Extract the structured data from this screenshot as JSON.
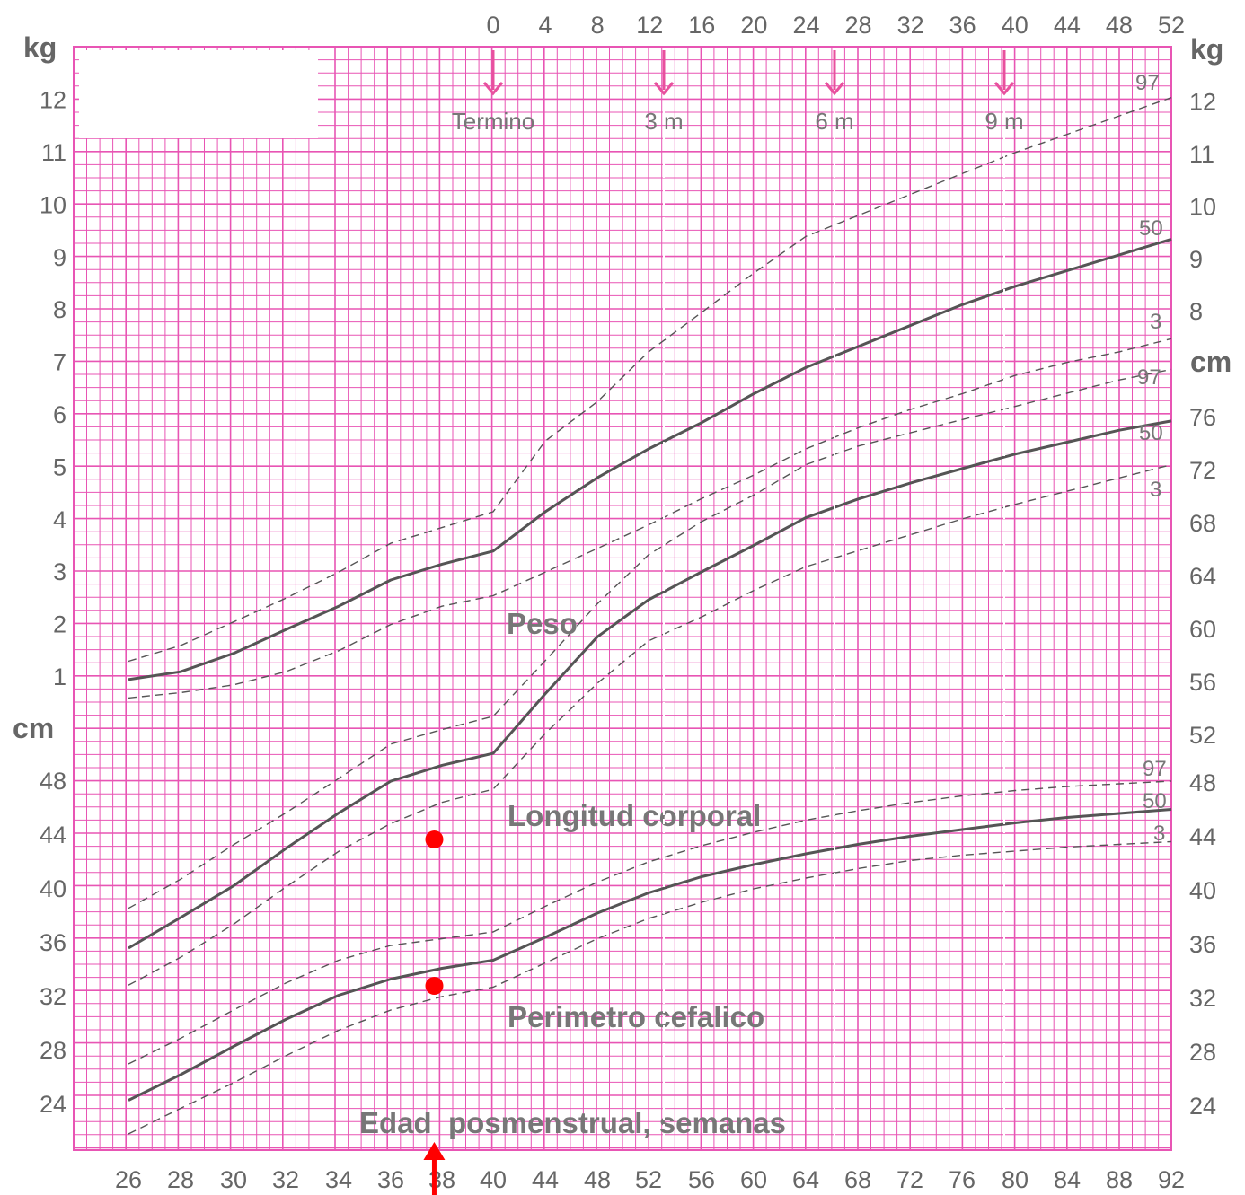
{
  "chart_data": {
    "type": "line",
    "x_bottom_ticks": [
      "26",
      "28",
      "30",
      "32",
      "34",
      "36",
      "38",
      "40",
      "44",
      "48",
      "52",
      "56",
      "60",
      "64",
      "68",
      "72",
      "76",
      "80",
      "84",
      "88",
      "92"
    ],
    "x_bottom_label": "Edad  posmenstrual, semanas",
    "x_top_ticks": [
      "0",
      "4",
      "8",
      "12",
      "16",
      "20",
      "24",
      "28",
      "32",
      "36",
      "40",
      "44",
      "48",
      "52"
    ],
    "age_markers": [
      {
        "label": "Termino",
        "x": 40
      },
      {
        "label": "3 m",
        "x": 53
      },
      {
        "label": "6 m",
        "x": 66
      },
      {
        "label": "9 m",
        "x": 79
      }
    ],
    "left_axis": {
      "unit_top": "kg",
      "kg_ticks": [
        "12",
        "11",
        "10",
        "9",
        "8",
        "7",
        "6",
        "5",
        "4",
        "3",
        "2",
        "1"
      ],
      "unit_mid": "cm",
      "cm_ticks": [
        "48",
        "44",
        "40",
        "36",
        "32",
        "28",
        "24"
      ]
    },
    "right_axis": {
      "unit_top": "kg",
      "kg_ticks": [
        "12",
        "11",
        "10",
        "9",
        "8"
      ],
      "unit_mid": "cm",
      "cm_ticks": [
        "76",
        "72",
        "68",
        "64",
        "60",
        "56",
        "52",
        "48",
        "44",
        "40",
        "36",
        "32",
        "28",
        "24"
      ]
    },
    "section_labels": [
      "Peso",
      "Longitud corporal",
      "Perimetro cefalico"
    ],
    "percentile_labels": {
      "peso": [
        "97",
        "50",
        "3"
      ],
      "longitud": [
        "97",
        "50",
        "3"
      ],
      "perimetro": [
        "97",
        "50",
        "3"
      ]
    },
    "series": [
      {
        "group": "peso",
        "pct": "97",
        "style": "dashed",
        "x": [
          26,
          28,
          30,
          32,
          34,
          36,
          38,
          40,
          44,
          48,
          52,
          56,
          60,
          64,
          68,
          72,
          76,
          80,
          84,
          88,
          92
        ],
        "y": [
          1.3,
          1.6,
          2.05,
          2.5,
          3.0,
          3.55,
          3.85,
          4.15,
          5.5,
          6.25,
          7.2,
          7.95,
          8.7,
          9.4,
          9.8,
          10.2,
          10.6,
          11.0,
          11.35,
          11.7,
          12.05
        ]
      },
      {
        "group": "peso",
        "pct": "50",
        "style": "solid",
        "x": [
          26,
          28,
          30,
          32,
          34,
          36,
          38,
          40,
          44,
          48,
          52,
          56,
          60,
          64,
          68,
          72,
          76,
          80,
          84,
          88,
          92
        ],
        "y": [
          0.95,
          1.1,
          1.45,
          1.9,
          2.35,
          2.85,
          3.15,
          3.4,
          4.15,
          4.8,
          5.35,
          5.85,
          6.4,
          6.9,
          7.3,
          7.7,
          8.1,
          8.45,
          8.75,
          9.05,
          9.35
        ]
      },
      {
        "group": "peso",
        "pct": "3",
        "style": "dashed",
        "x": [
          26,
          28,
          30,
          32,
          34,
          36,
          38,
          40,
          44,
          48,
          52,
          56,
          60,
          64,
          68,
          72,
          76,
          80,
          84,
          88,
          92
        ],
        "y": [
          0.6,
          0.7,
          0.85,
          1.1,
          1.5,
          2.0,
          2.35,
          2.55,
          3.0,
          3.45,
          3.9,
          4.4,
          4.85,
          5.35,
          5.75,
          6.1,
          6.4,
          6.75,
          7.0,
          7.2,
          7.45
        ]
      },
      {
        "group": "longitud",
        "pct": "97",
        "style": "dashed",
        "x": [
          26,
          28,
          30,
          32,
          34,
          36,
          38,
          40,
          44,
          48,
          52,
          56,
          60,
          64,
          68,
          72,
          76,
          80,
          84,
          88,
          92
        ],
        "y": [
          38.8,
          41.0,
          43.6,
          46.0,
          48.6,
          51.2,
          52.3,
          53.3,
          57.5,
          61.8,
          65.5,
          68.0,
          70.0,
          72.3,
          73.7,
          74.7,
          75.7,
          76.7,
          77.7,
          78.7,
          79.5
        ]
      },
      {
        "group": "longitud",
        "pct": "50",
        "style": "solid",
        "x": [
          26,
          28,
          30,
          32,
          34,
          36,
          38,
          40,
          44,
          48,
          52,
          56,
          60,
          64,
          68,
          72,
          76,
          80,
          84,
          88,
          92
        ],
        "y": [
          35.8,
          38.1,
          40.5,
          43.3,
          46.0,
          48.4,
          49.6,
          50.5,
          55.0,
          59.3,
          62.1,
          64.2,
          66.2,
          68.3,
          69.7,
          70.9,
          72.0,
          73.1,
          74.0,
          74.9,
          75.6
        ]
      },
      {
        "group": "longitud",
        "pct": "3",
        "style": "dashed",
        "x": [
          26,
          28,
          30,
          32,
          34,
          36,
          38,
          40,
          44,
          48,
          52,
          56,
          60,
          64,
          68,
          72,
          76,
          80,
          84,
          88,
          92
        ],
        "y": [
          33.0,
          35.1,
          37.6,
          40.4,
          43.1,
          45.2,
          46.8,
          47.8,
          52.0,
          55.8,
          59.0,
          60.8,
          62.8,
          64.6,
          65.8,
          67.0,
          68.2,
          69.3,
          70.3,
          71.3,
          72.3
        ]
      },
      {
        "group": "perimetro",
        "pct": "97",
        "style": "dashed",
        "x": [
          26,
          28,
          30,
          32,
          34,
          36,
          38,
          40,
          44,
          48,
          52,
          56,
          60,
          64,
          68,
          72,
          76,
          80,
          84,
          88,
          92
        ],
        "y": [
          27.0,
          28.9,
          31.0,
          33.0,
          34.7,
          35.8,
          36.3,
          36.8,
          38.7,
          40.5,
          42.0,
          43.2,
          44.2,
          45.1,
          45.8,
          46.4,
          46.9,
          47.3,
          47.6,
          47.8,
          48.0
        ]
      },
      {
        "group": "perimetro",
        "pct": "50",
        "style": "solid",
        "x": [
          26,
          28,
          30,
          32,
          34,
          36,
          38,
          40,
          44,
          48,
          52,
          56,
          60,
          64,
          68,
          72,
          76,
          80,
          84,
          88,
          92
        ],
        "y": [
          24.3,
          26.2,
          28.3,
          30.3,
          32.1,
          33.3,
          34.1,
          34.7,
          36.4,
          38.2,
          39.7,
          40.9,
          41.8,
          42.6,
          43.3,
          43.9,
          44.4,
          44.9,
          45.3,
          45.6,
          45.9
        ]
      },
      {
        "group": "perimetro",
        "pct": "3",
        "style": "dashed",
        "x": [
          26,
          28,
          30,
          32,
          34,
          36,
          38,
          40,
          44,
          48,
          52,
          56,
          60,
          64,
          68,
          72,
          76,
          80,
          84,
          88,
          92
        ],
        "y": [
          21.8,
          23.7,
          25.6,
          27.6,
          29.5,
          31.0,
          32.0,
          32.7,
          34.5,
          36.3,
          37.8,
          39.0,
          40.0,
          40.8,
          41.5,
          42.1,
          42.5,
          42.8,
          43.1,
          43.3,
          43.5
        ]
      }
    ],
    "patient_points": [
      {
        "group": "longitud",
        "x": 37.7,
        "y": 44.0
      },
      {
        "group": "perimetro",
        "x": 37.7,
        "y": 32.8
      }
    ],
    "current_age_marker_x": 37.7,
    "colors": {
      "grid": "#e855b4",
      "curve": "#555555",
      "top_arrow": "#e8509e",
      "patient": "#ff0000",
      "text": "#666666"
    }
  }
}
